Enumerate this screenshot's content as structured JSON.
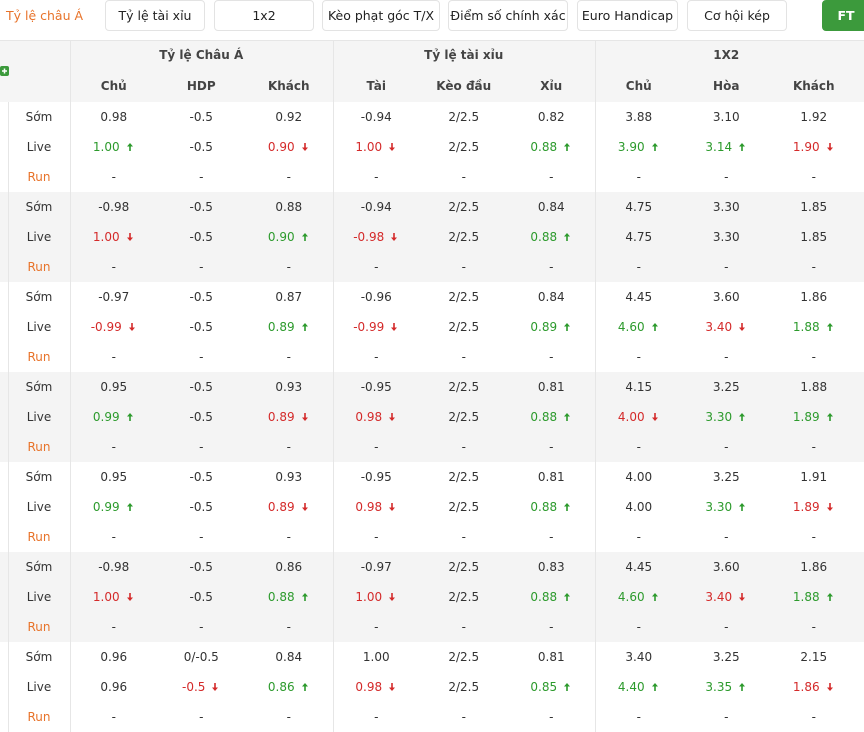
{
  "tabs": [
    "Tỷ lệ châu Á",
    "Tỷ lệ tài xỉu",
    "1x2",
    "Kèo phạt góc T/X",
    "Điểm số chính xác",
    "Euro Handicap",
    "Cơ hội kép",
    "FT"
  ],
  "table": {
    "groups": [
      "Tỷ lệ Châu Á",
      "Tỷ lệ tài xỉu",
      "1X2"
    ],
    "columns": [
      "Chủ",
      "HDP",
      "Khách",
      "Tài",
      "Kèo đầu",
      "Xỉu",
      "Chủ",
      "Hòa",
      "Khách"
    ],
    "blocks": [
      {
        "rows": [
          {
            "label": "Sớm",
            "cells": [
              "0.98",
              "-0.5",
              "0.92",
              "-0.94",
              "2/2.5",
              "0.82",
              "3.88",
              "3.10",
              "1.92"
            ]
          },
          {
            "label": "Live",
            "cells": [
              "1.00",
              "-0.5",
              "0.90",
              "1.00",
              "2/2.5",
              "0.88",
              "3.90",
              "3.14",
              "1.90"
            ],
            "trends": [
              "up",
              null,
              "down",
              "down",
              null,
              "up",
              "up",
              "up",
              "down"
            ]
          },
          {
            "label": "Run",
            "cells": [
              "-",
              "-",
              "-",
              "-",
              "-",
              "-",
              "-",
              "-",
              "-"
            ]
          }
        ]
      },
      {
        "rows": [
          {
            "label": "Sớm",
            "cells": [
              "-0.98",
              "-0.5",
              "0.88",
              "-0.94",
              "2/2.5",
              "0.84",
              "4.75",
              "3.30",
              "1.85"
            ]
          },
          {
            "label": "Live",
            "cells": [
              "1.00",
              "-0.5",
              "0.90",
              "-0.98",
              "2/2.5",
              "0.88",
              "4.75",
              "3.30",
              "1.85"
            ],
            "trends": [
              "down",
              null,
              "up",
              "down",
              null,
              "up",
              null,
              null,
              null
            ]
          },
          {
            "label": "Run",
            "cells": [
              "-",
              "-",
              "-",
              "-",
              "-",
              "-",
              "-",
              "-",
              "-"
            ]
          }
        ]
      },
      {
        "rows": [
          {
            "label": "Sớm",
            "cells": [
              "-0.97",
              "-0.5",
              "0.87",
              "-0.96",
              "2/2.5",
              "0.84",
              "4.45",
              "3.60",
              "1.86"
            ]
          },
          {
            "label": "Live",
            "cells": [
              "-0.99",
              "-0.5",
              "0.89",
              "-0.99",
              "2/2.5",
              "0.89",
              "4.60",
              "3.40",
              "1.88"
            ],
            "trends": [
              "down",
              null,
              "up",
              "down",
              null,
              "up",
              "up",
              "down",
              "up"
            ]
          },
          {
            "label": "Run",
            "cells": [
              "-",
              "-",
              "-",
              "-",
              "-",
              "-",
              "-",
              "-",
              "-"
            ]
          }
        ]
      },
      {
        "rows": [
          {
            "label": "Sớm",
            "cells": [
              "0.95",
              "-0.5",
              "0.93",
              "-0.95",
              "2/2.5",
              "0.81",
              "4.15",
              "3.25",
              "1.88"
            ]
          },
          {
            "label": "Live",
            "cells": [
              "0.99",
              "-0.5",
              "0.89",
              "0.98",
              "2/2.5",
              "0.88",
              "4.00",
              "3.30",
              "1.89"
            ],
            "trends": [
              "up",
              null,
              "down",
              "down",
              null,
              "up",
              "down",
              "up",
              "up"
            ]
          },
          {
            "label": "Run",
            "cells": [
              "-",
              "-",
              "-",
              "-",
              "-",
              "-",
              "-",
              "-",
              "-"
            ]
          }
        ]
      },
      {
        "rows": [
          {
            "label": "Sớm",
            "cells": [
              "0.95",
              "-0.5",
              "0.93",
              "-0.95",
              "2/2.5",
              "0.81",
              "4.00",
              "3.25",
              "1.91"
            ]
          },
          {
            "label": "Live",
            "cells": [
              "0.99",
              "-0.5",
              "0.89",
              "0.98",
              "2/2.5",
              "0.88",
              "4.00",
              "3.30",
              "1.89"
            ],
            "trends": [
              "up",
              null,
              "down",
              "down",
              null,
              "up",
              null,
              "up",
              "down"
            ]
          },
          {
            "label": "Run",
            "cells": [
              "-",
              "-",
              "-",
              "-",
              "-",
              "-",
              "-",
              "-",
              "-"
            ]
          }
        ]
      },
      {
        "rows": [
          {
            "label": "Sớm",
            "cells": [
              "-0.98",
              "-0.5",
              "0.86",
              "-0.97",
              "2/2.5",
              "0.83",
              "4.45",
              "3.60",
              "1.86"
            ]
          },
          {
            "label": "Live",
            "cells": [
              "1.00",
              "-0.5",
              "0.88",
              "1.00",
              "2/2.5",
              "0.88",
              "4.60",
              "3.40",
              "1.88"
            ],
            "trends": [
              "down",
              null,
              "up",
              "down",
              null,
              "up",
              "up",
              "down",
              "up"
            ]
          },
          {
            "label": "Run",
            "cells": [
              "-",
              "-",
              "-",
              "-",
              "-",
              "-",
              "-",
              "-",
              "-"
            ]
          }
        ]
      },
      {
        "rows": [
          {
            "label": "Sớm",
            "cells": [
              "0.96",
              "0/-0.5",
              "0.84",
              "1.00",
              "2/2.5",
              "0.81",
              "3.40",
              "3.25",
              "2.15"
            ]
          },
          {
            "label": "Live",
            "cells": [
              "0.96",
              "-0.5",
              "0.86",
              "0.98",
              "2/2.5",
              "0.85",
              "4.40",
              "3.35",
              "1.86"
            ],
            "trends": [
              null,
              "down",
              "up",
              "down",
              null,
              "up",
              "up",
              "up",
              "down"
            ]
          },
          {
            "label": "Run",
            "cells": [
              "-",
              "-",
              "-",
              "-",
              "-",
              "-",
              "-",
              "-",
              "-"
            ]
          }
        ]
      }
    ]
  }
}
